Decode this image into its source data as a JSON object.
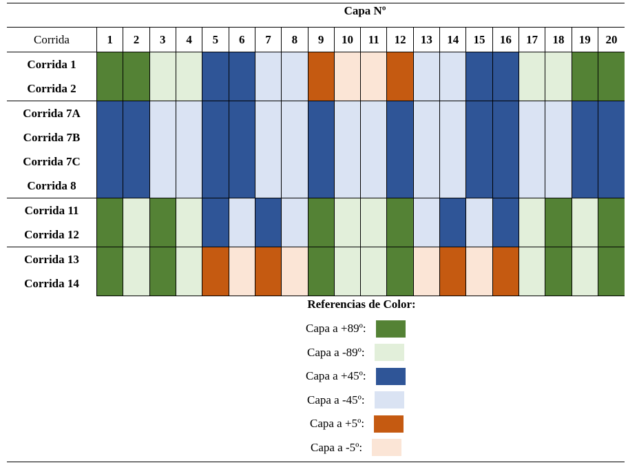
{
  "header": {
    "title": "Capa Nº"
  },
  "table": {
    "row_header_label": "Corrida",
    "columns": [
      "1",
      "2",
      "3",
      "4",
      "5",
      "6",
      "7",
      "8",
      "9",
      "10",
      "11",
      "12",
      "13",
      "14",
      "15",
      "16",
      "17",
      "18",
      "19",
      "20"
    ],
    "rows": [
      {
        "label": "Corrida 1",
        "cells": [
          "G",
          "G",
          "g",
          "g",
          "B",
          "B",
          "b",
          "b",
          "O",
          "o",
          "o",
          "O",
          "b",
          "b",
          "B",
          "B",
          "g",
          "g",
          "G",
          "G"
        ]
      },
      {
        "label": "Corrida 2",
        "cells": [
          "G",
          "G",
          "g",
          "g",
          "B",
          "B",
          "b",
          "b",
          "O",
          "o",
          "o",
          "O",
          "b",
          "b",
          "B",
          "B",
          "g",
          "g",
          "G",
          "G"
        ]
      },
      {
        "label": "Corrida 7A",
        "cells": [
          "B",
          "B",
          "b",
          "b",
          "B",
          "B",
          "b",
          "b",
          "B",
          "b",
          "b",
          "B",
          "b",
          "b",
          "B",
          "B",
          "b",
          "b",
          "B",
          "B"
        ]
      },
      {
        "label": "Corrida 7B",
        "cells": [
          "B",
          "B",
          "b",
          "b",
          "B",
          "B",
          "b",
          "b",
          "B",
          "b",
          "b",
          "B",
          "b",
          "b",
          "B",
          "B",
          "b",
          "b",
          "B",
          "B"
        ]
      },
      {
        "label": "Corrida 7C",
        "cells": [
          "B",
          "B",
          "b",
          "b",
          "B",
          "B",
          "b",
          "b",
          "B",
          "b",
          "b",
          "B",
          "b",
          "b",
          "B",
          "B",
          "b",
          "b",
          "B",
          "B"
        ]
      },
      {
        "label": "Corrida 8",
        "cells": [
          "B",
          "B",
          "b",
          "b",
          "B",
          "B",
          "b",
          "b",
          "B",
          "b",
          "b",
          "B",
          "b",
          "b",
          "B",
          "B",
          "b",
          "b",
          "B",
          "B"
        ]
      },
      {
        "label": "Corrida 11",
        "cells": [
          "G",
          "g",
          "G",
          "g",
          "B",
          "b",
          "B",
          "b",
          "G",
          "g",
          "g",
          "G",
          "b",
          "B",
          "b",
          "B",
          "g",
          "G",
          "g",
          "G"
        ]
      },
      {
        "label": "Corrida 12",
        "cells": [
          "G",
          "g",
          "G",
          "g",
          "B",
          "b",
          "B",
          "b",
          "G",
          "g",
          "g",
          "G",
          "b",
          "B",
          "b",
          "B",
          "g",
          "G",
          "g",
          "G"
        ]
      },
      {
        "label": "Corrida 13",
        "cells": [
          "G",
          "g",
          "G",
          "g",
          "O",
          "o",
          "O",
          "o",
          "G",
          "g",
          "g",
          "G",
          "o",
          "O",
          "o",
          "O",
          "g",
          "G",
          "g",
          "G"
        ]
      },
      {
        "label": "Corrida 14",
        "cells": [
          "G",
          "g",
          "G",
          "g",
          "O",
          "o",
          "O",
          "o",
          "G",
          "g",
          "g",
          "G",
          "o",
          "O",
          "o",
          "O",
          "g",
          "G",
          "g",
          "G"
        ]
      }
    ],
    "group_separators_before_rows": [
      2,
      6,
      8
    ]
  },
  "colors": {
    "G": "#548235",
    "g": "#E2EFDA",
    "B": "#2F5597",
    "b": "#DAE3F3",
    "O": "#C55A11",
    "o": "#FBE5D6"
  },
  "legend": {
    "title": "Referencias de Color:",
    "items": [
      {
        "label": "Capa a +89º:",
        "code": "G"
      },
      {
        "label": "Capa a -89º:",
        "code": "g"
      },
      {
        "label": "Capa a +45º:",
        "code": "B"
      },
      {
        "label": "Capa a -45º:",
        "code": "b"
      },
      {
        "label": "Capa a +5º:",
        "code": "O"
      },
      {
        "label": "Capa a -5º:",
        "code": "o"
      }
    ]
  }
}
